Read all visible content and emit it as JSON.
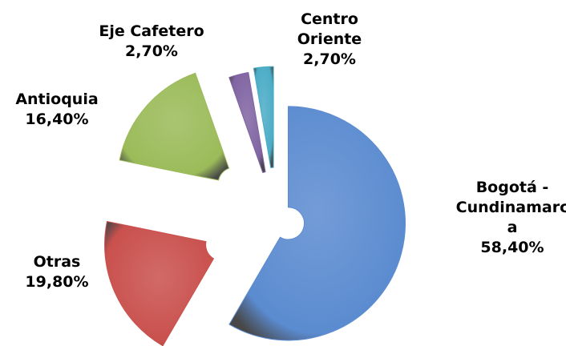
{
  "chart_data": {
    "type": "pie",
    "categories": [
      "Bogotá - Cundinamarca",
      "Otras",
      "Antioquia",
      "Eje Cafetero",
      "Centro Oriente"
    ],
    "values": [
      58.4,
      19.8,
      16.4,
      2.7,
      2.7
    ],
    "value_labels": [
      "58,40%",
      "19,80%",
      "16,40%",
      "2,70%",
      "2,70%"
    ],
    "colors": [
      "#5b8bd0",
      "#c9504d",
      "#9bbb59",
      "#8064a2",
      "#4bacc6"
    ]
  }
}
